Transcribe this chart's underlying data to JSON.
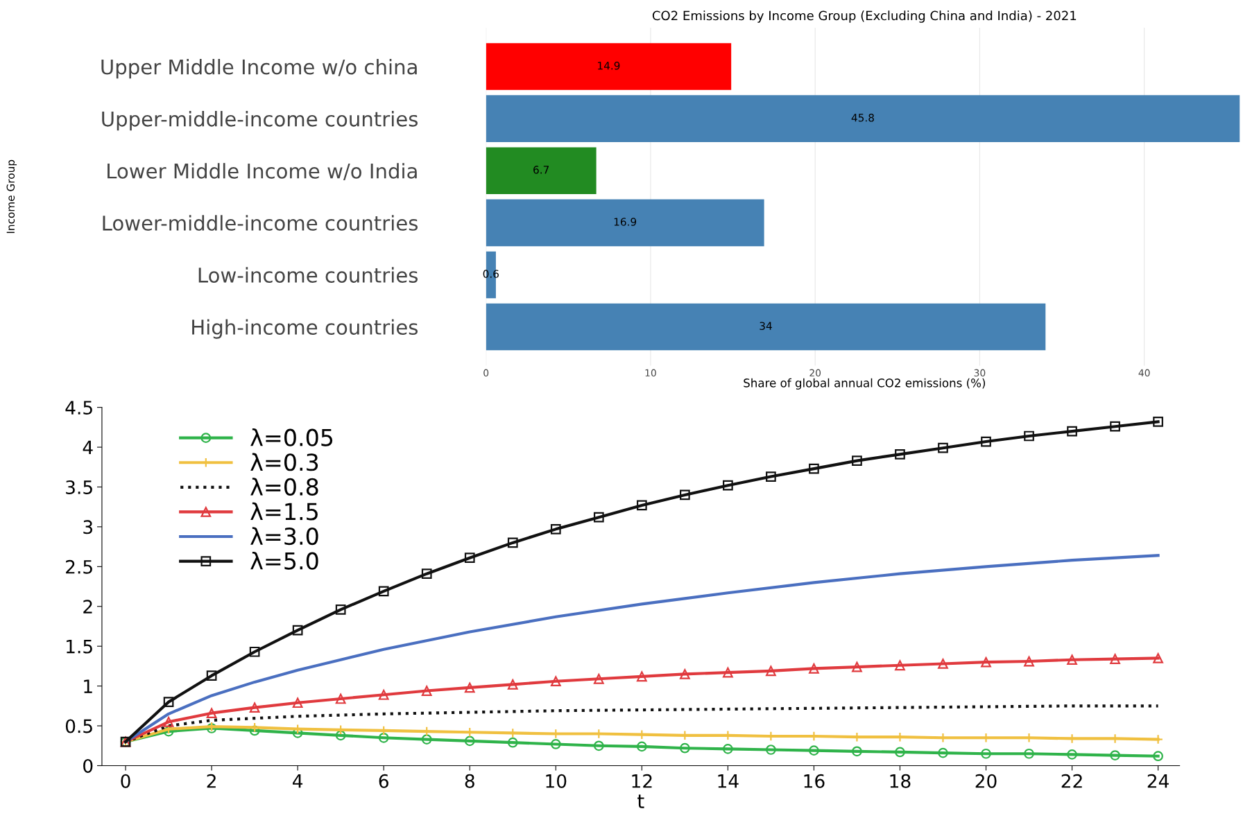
{
  "chart_data": [
    {
      "type": "bar",
      "orientation": "horizontal",
      "title": "CO2 Emissions by Income Group (Excluding China and India) - 2021",
      "xlabel": "Share of global annual CO2 emissions (%)",
      "ylabel": "Income Group",
      "categories": [
        "Upper Middle Income w/o china",
        "Upper-middle-income countries",
        "Lower Middle Income w/o India",
        "Lower-middle-income countries",
        "Low-income countries",
        "High-income countries"
      ],
      "values": [
        14.9,
        45.8,
        6.7,
        16.9,
        0.6,
        34
      ],
      "colors": [
        "#ff0000",
        "#4682b4",
        "#228b22",
        "#4682b4",
        "#4682b4",
        "#4682b4"
      ],
      "xlim": [
        0,
        46
      ],
      "xticks": [
        0,
        10,
        20,
        30,
        40
      ],
      "grid": "x",
      "data_labels": true
    },
    {
      "type": "line",
      "xlabel": "t",
      "xlim": [
        -0.55,
        24.5
      ],
      "ylim": [
        0,
        4.5
      ],
      "xticks": [
        0,
        2,
        4,
        6,
        8,
        10,
        12,
        14,
        16,
        18,
        20,
        22,
        24
      ],
      "yticks": [
        0,
        0.5,
        1,
        1.5,
        2,
        2.5,
        3,
        3.5,
        4,
        4.5
      ],
      "grid": false,
      "legend": "top left",
      "series": [
        {
          "name": "λ=0.05",
          "color": "#2fb34a",
          "marker": "circle",
          "line_style": "solid",
          "x": [
            0,
            1,
            2,
            3,
            4,
            5,
            6,
            7,
            8,
            9,
            10,
            11,
            12,
            13,
            14,
            15,
            16,
            17,
            18,
            19,
            20,
            21,
            22,
            23,
            24
          ],
          "values": [
            0.3,
            0.43,
            0.47,
            0.44,
            0.41,
            0.38,
            0.35,
            0.33,
            0.31,
            0.29,
            0.27,
            0.25,
            0.24,
            0.22,
            0.21,
            0.2,
            0.19,
            0.18,
            0.17,
            0.16,
            0.15,
            0.15,
            0.14,
            0.13,
            0.12
          ]
        },
        {
          "name": "λ=0.3",
          "color": "#f0c040",
          "marker": "cross",
          "line_style": "solid",
          "x": [
            0,
            1,
            2,
            3,
            4,
            5,
            6,
            7,
            8,
            9,
            10,
            11,
            12,
            13,
            14,
            15,
            16,
            17,
            18,
            19,
            20,
            21,
            22,
            23,
            24
          ],
          "values": [
            0.3,
            0.46,
            0.49,
            0.48,
            0.46,
            0.45,
            0.44,
            0.43,
            0.42,
            0.41,
            0.4,
            0.4,
            0.39,
            0.38,
            0.38,
            0.37,
            0.37,
            0.36,
            0.36,
            0.35,
            0.35,
            0.35,
            0.34,
            0.34,
            0.33
          ]
        },
        {
          "name": "λ=0.8",
          "color": "#111111",
          "marker": "none",
          "line_style": "dotted",
          "x": [
            0,
            1,
            2,
            4,
            6,
            8,
            10,
            12,
            14,
            16,
            18,
            20,
            22,
            24
          ],
          "values": [
            0.3,
            0.5,
            0.57,
            0.62,
            0.65,
            0.67,
            0.69,
            0.7,
            0.71,
            0.72,
            0.73,
            0.74,
            0.75,
            0.75
          ]
        },
        {
          "name": "λ=1.5",
          "color": "#e03a3e",
          "marker": "triangle",
          "line_style": "solid",
          "x": [
            0,
            1,
            2,
            3,
            4,
            5,
            6,
            7,
            8,
            9,
            10,
            11,
            12,
            13,
            14,
            15,
            16,
            17,
            18,
            19,
            20,
            21,
            22,
            23,
            24
          ],
          "values": [
            0.3,
            0.55,
            0.66,
            0.73,
            0.79,
            0.84,
            0.89,
            0.94,
            0.98,
            1.02,
            1.06,
            1.09,
            1.12,
            1.15,
            1.17,
            1.19,
            1.22,
            1.24,
            1.26,
            1.28,
            1.3,
            1.31,
            1.33,
            1.34,
            1.35
          ]
        },
        {
          "name": "λ=3.0",
          "color": "#4a6fc0",
          "marker": "none",
          "line_style": "solid",
          "x": [
            0,
            1,
            2,
            3,
            4,
            5,
            6,
            8,
            10,
            12,
            14,
            16,
            18,
            20,
            22,
            24
          ],
          "values": [
            0.3,
            0.65,
            0.88,
            1.05,
            1.2,
            1.33,
            1.46,
            1.68,
            1.87,
            2.03,
            2.17,
            2.3,
            2.41,
            2.5,
            2.58,
            2.64
          ]
        },
        {
          "name": "λ=5.0",
          "color": "#111111",
          "marker": "square",
          "line_style": "solid",
          "x": [
            0,
            1,
            2,
            3,
            4,
            5,
            6,
            7,
            8,
            9,
            10,
            11,
            12,
            13,
            14,
            15,
            16,
            17,
            18,
            19,
            20,
            21,
            22,
            23,
            24
          ],
          "values": [
            0.3,
            0.8,
            1.13,
            1.43,
            1.7,
            1.96,
            2.19,
            2.41,
            2.61,
            2.8,
            2.97,
            3.12,
            3.27,
            3.4,
            3.52,
            3.63,
            3.73,
            3.83,
            3.91,
            3.99,
            4.07,
            4.14,
            4.2,
            4.26,
            4.32
          ]
        }
      ]
    }
  ]
}
